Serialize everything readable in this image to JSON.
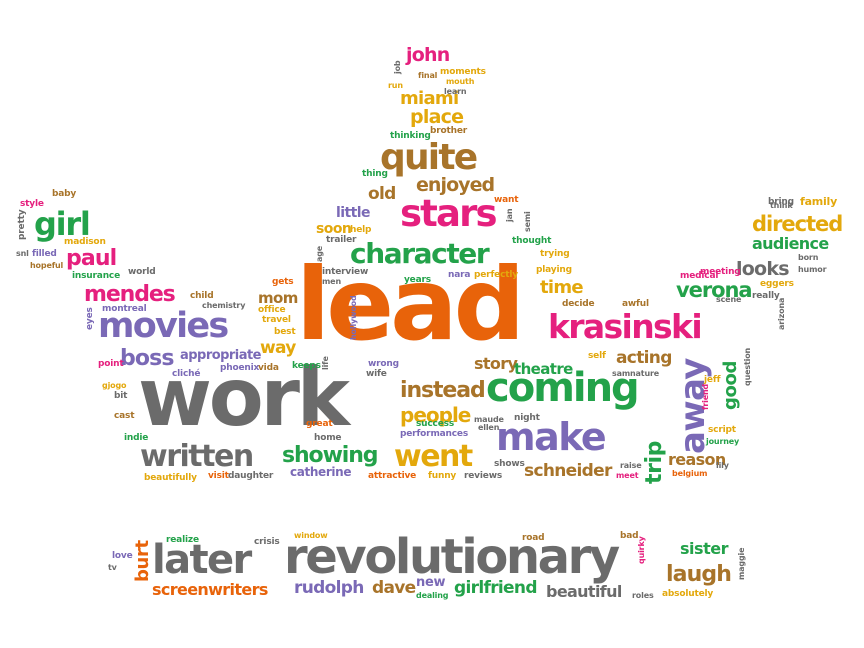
{
  "palette": {
    "orange": "#e8630a",
    "green": "#23a24a",
    "pink": "#e5207e",
    "purple": "#7a69b6",
    "gray": "#6b6b6b",
    "gold": "#e3a80c",
    "brown": "#a8742a"
  },
  "words": {
    "lead": "lead",
    "work": "work",
    "revolutionary": "revolutionary",
    "later": "later",
    "coming": "coming",
    "make": "make",
    "krasinski": "krasinski",
    "movies": "movies",
    "stars": "stars",
    "quite": "quite",
    "away": "away",
    "written": "written",
    "character": "character",
    "went": "went",
    "girl": "girl",
    "showing": "showing",
    "instead": "instead",
    "people": "people",
    "mendes": "mendes",
    "paul": "paul",
    "boss": "boss",
    "directed": "directed",
    "verona": "verona",
    "looks": "looks",
    "audience": "audience",
    "john": "john",
    "miami": "miami",
    "place": "place",
    "enjoyed": "enjoyed",
    "old": "old",
    "little": "little",
    "soon": "soon",
    "mom": "mom",
    "way": "way",
    "story": "story",
    "theatre": "theatre",
    "acting": "acting",
    "time": "time",
    "good": "good",
    "trip": "trip",
    "reason": "reason",
    "schneider": "schneider",
    "catherine": "catherine",
    "appropriate": "appropriate",
    "laugh": "laugh",
    "sister": "sister",
    "dave": "dave",
    "rudolph": "rudolph",
    "screenwriters": "screenwriters",
    "girlfriend": "girlfriend",
    "beautiful": "beautiful",
    "new": "new",
    "burt": "burt",
    "family": "family",
    "baby": "baby",
    "style": "style",
    "pretty": "pretty",
    "madison": "madison",
    "snl": "snl",
    "filled": "filled",
    "hopeful": "hopeful",
    "insurance": "insurance",
    "world": "world",
    "child": "child",
    "chemistry": "chemistry",
    "montreal": "montreal",
    "eyes": "eyes",
    "point": "point",
    "cliche": "cliché",
    "vida": "vida",
    "phoenix": "phoenix",
    "gets": "gets",
    "office": "office",
    "travel": "travel",
    "best": "best",
    "keeps": "keeps",
    "life": "life",
    "men": "men",
    "age": "age",
    "interview": "interview",
    "hollywood": "hollywood",
    "years": "years",
    "nara": "nara",
    "perfectly": "perfectly",
    "playing": "playing",
    "trying": "trying",
    "thought": "thought",
    "semi": "semi",
    "jan": "jan",
    "want": "want",
    "thing": "thing",
    "thinking": "thinking",
    "brother": "brother",
    "moments": "moments",
    "mouth": "mouth",
    "final": "final",
    "learn": "learn",
    "run": "run",
    "job": "job",
    "help": "help",
    "trailer": "trailer",
    "decide": "decide",
    "awful": "awful",
    "self": "self",
    "sam": "sam",
    "nature": "nature",
    "wrong": "wrong",
    "wife": "wife",
    "night": "night",
    "success": "success",
    "performances": "performances",
    "maude": "maude",
    "ellen": "ellen",
    "great": "great",
    "home": "home",
    "funny": "funny",
    "reviews": "reviews",
    "shows": "shows",
    "raise": "raise",
    "meet": "meet",
    "attractive": "attractive",
    "visit": "visit",
    "daughter": "daughter",
    "beautifully": "beautifully",
    "indie": "indie",
    "cast": "cast",
    "bit": "bit",
    "gjogo": "gjogo",
    "question": "question",
    "medical": "medical",
    "meeting": "meeting",
    "scene": "scene",
    "really": "really",
    "arizona": "arizona",
    "think": "think",
    "humor": "humor",
    "born": "born",
    "eggers": "eggers",
    "bring": "bring",
    "jeff": "jeff",
    "friend": "friend",
    "script": "script",
    "journey": "journey",
    "belgium": "belgium",
    "lily": "lily",
    "realize": "realize",
    "crisis": "crisis",
    "window": "window",
    "road": "road",
    "bad": "bad",
    "quirky": "quirky",
    "maggie": "maggie",
    "love": "love",
    "tv": "tv",
    "dealing": "dealing",
    "roles": "roles",
    "absolutely": "absolutely"
  }
}
